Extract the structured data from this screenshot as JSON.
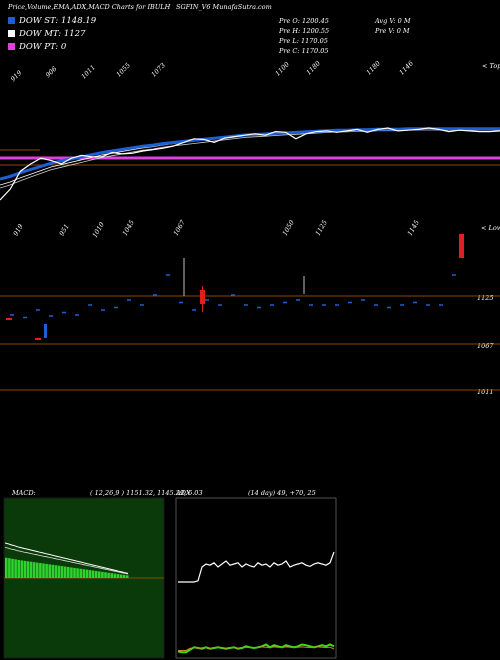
{
  "header": {
    "left": "Price,Volume,EMA,ADX,MACD Charts for IBULH",
    "right": "SGFIN_V6 MunafaSutra.com"
  },
  "legend": [
    {
      "label": "DOW ST: 1148.19",
      "color": "#1f5fd6"
    },
    {
      "label": "DOW MT: 1127",
      "color": "#ffffff"
    },
    {
      "label": "DOW PT: 0",
      "color": "#e040e0"
    }
  ],
  "ohlc": {
    "open": "Pre  O: 1200.45",
    "high": "Pre  H: 1200.55",
    "low": "Pre  L: 1170.05",
    "close": "Pre  C: 1170.05",
    "avg_vol": "Avg V: 0  M",
    "pre_vol": "Pre  V: 0  M"
  },
  "top_axis_labels": [
    "919",
    "906",
    "1011",
    "1055",
    "1073",
    "1100",
    "1180",
    "1180",
    "1146"
  ],
  "top_axis_note": "< Tops",
  "mid_axis_labels": [
    "919",
    "951",
    "1010",
    "1045",
    "1067",
    "1050",
    "1125",
    "1145"
  ],
  "mid_axis_note": "< Lows",
  "right_levels": [
    "1125",
    "1067",
    "1011"
  ],
  "macd": {
    "label": "MACD:",
    "values": "( 12,26,9 ) 1151.32,  1145.29,  6.03"
  },
  "adx": {
    "label": "ADX",
    "values": "(14  day) 49,  +70,  25"
  },
  "colors": {
    "ema_fast": "#1f5fd6",
    "purple": "#e040e0",
    "orange": "#8a4a00",
    "macd_bg": "#0a3a0a",
    "macd_hist": "#2ed12e",
    "adx_green": "#39e010",
    "adx_orange": "#d08030",
    "candle_red": "#e02020"
  },
  "chart_data": [
    {
      "type": "line",
      "title": "Price, EMA",
      "series": [
        {
          "values": [
            1,
            0.85,
            0.6,
            0.5,
            0.42,
            0.45,
            0.5,
            0.42,
            0.38,
            0.4,
            0.4,
            0.34,
            0.36,
            0.35,
            0.32,
            0.3,
            0.28,
            0.25,
            0.2,
            0.15,
            0.16,
            0.2,
            0.14,
            0.12,
            0.1,
            0.08,
            0.1,
            0.05,
            0.06,
            0.15,
            0.08,
            0.05,
            0.04,
            0.06,
            0.04,
            0.02,
            0.06,
            0.02,
            0.0,
            0.04,
            0.03,
            0.02,
            0.0,
            0.02,
            0.05,
            0.03,
            0.04,
            0.05,
            0.05,
            0.04
          ]
        },
        {
          "values": [
            1,
            0.95,
            0.88,
            0.82,
            0.76,
            0.7,
            0.66,
            0.62,
            0.58,
            0.54,
            0.5,
            0.47,
            0.44,
            0.41,
            0.38,
            0.36,
            0.33,
            0.31,
            0.29,
            0.27,
            0.25,
            0.23,
            0.21,
            0.19,
            0.17,
            0.16,
            0.15,
            0.14,
            0.13,
            0.12,
            0.11,
            0.1,
            0.09,
            0.08,
            0.08,
            0.07,
            0.07,
            0.06,
            0.06,
            0.06,
            0.05,
            0.05,
            0.05,
            0.05,
            0.05,
            0.05,
            0.05,
            0.05,
            0.05,
            0.05
          ]
        }
      ]
    },
    {
      "type": "bar",
      "title": "Volume / candles",
      "values": [
        0.1,
        0.05,
        0.2,
        0.08,
        0.15,
        0.1,
        0.3,
        0.2,
        0.25,
        0.4,
        0.3,
        0.5,
        0.9,
        0.35,
        0.2,
        0.4,
        0.3,
        0.5,
        0.3,
        0.25,
        0.3,
        0.35,
        0.4,
        0.3,
        0.3,
        0.3,
        0.35,
        0.4,
        0.3,
        0.25,
        0.3,
        0.35,
        0.3,
        0.3,
        0.9
      ]
    },
    {
      "type": "area",
      "title": "MACD",
      "values": [
        0.92,
        0.9,
        0.87,
        0.85,
        0.82,
        0.8,
        0.78,
        0.76,
        0.74,
        0.72,
        0.7,
        0.68,
        0.66,
        0.64,
        0.62,
        0.6,
        0.58,
        0.56,
        0.54,
        0.52,
        0.5,
        0.48,
        0.46,
        0.44,
        0.42,
        0.4,
        0.38,
        0.36,
        0.34,
        0.32,
        0.3,
        0.28,
        0.26,
        0.24,
        0.22,
        0.2,
        0.18,
        0.16,
        0.14,
        0.12
      ]
    },
    {
      "type": "line",
      "title": "ADX",
      "series": [
        {
          "values": [
            0.3,
            0.3,
            0.3,
            0.3,
            0.3,
            0.32,
            0.55,
            0.6,
            0.58,
            0.62,
            0.55,
            0.6,
            0.65,
            0.58,
            0.6,
            0.62,
            0.55,
            0.6,
            0.57,
            0.55,
            0.62,
            0.58,
            0.6,
            0.55,
            0.62,
            0.58,
            0.6,
            0.65,
            0.55,
            0.58,
            0.6,
            0.62,
            0.58,
            0.56,
            0.6,
            0.62,
            0.6,
            0.58,
            0.62,
            0.8
          ]
        },
        {
          "values": [
            0.1,
            0.08,
            0.08,
            0.15,
            0.22,
            0.2,
            0.18,
            0.22,
            0.18,
            0.2,
            0.22,
            0.2,
            0.18,
            0.2,
            0.22,
            0.18,
            0.2,
            0.25,
            0.22,
            0.2,
            0.22,
            0.25,
            0.3,
            0.22,
            0.28,
            0.25,
            0.22,
            0.28,
            0.25,
            0.22,
            0.25,
            0.3,
            0.28,
            0.25,
            0.22,
            0.25,
            0.28,
            0.25,
            0.3,
            0.25
          ]
        },
        {
          "values": [
            0.05,
            0.05,
            0.05,
            0.12,
            0.15,
            0.12,
            0.14,
            0.15,
            0.13,
            0.14,
            0.16,
            0.14,
            0.13,
            0.15,
            0.14,
            0.13,
            0.15,
            0.16,
            0.15,
            0.14,
            0.15,
            0.17,
            0.16,
            0.15,
            0.17,
            0.16,
            0.15,
            0.17,
            0.16,
            0.15,
            0.16,
            0.17,
            0.16,
            0.15,
            0.16,
            0.17,
            0.16,
            0.15,
            0.16,
            0.1
          ]
        }
      ]
    }
  ]
}
